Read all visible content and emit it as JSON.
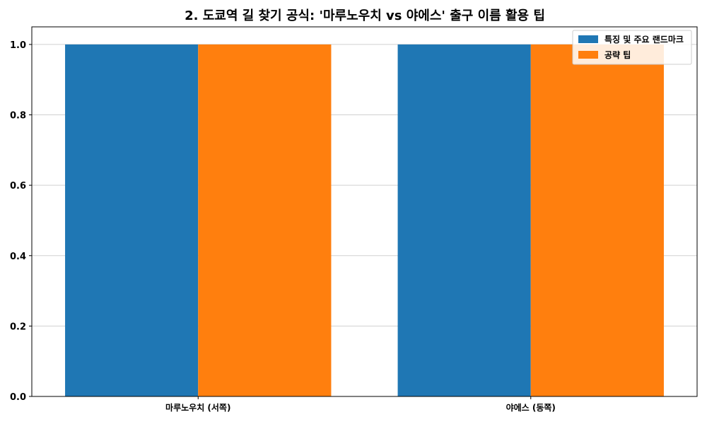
{
  "chart_data": {
    "type": "bar",
    "title": "2. 도쿄역 길 찾기 공식: '마루노우치 vs 야에스' 출구 이름 활용 팁",
    "xlabel": "",
    "ylabel": "",
    "categories": [
      "마루노우치 (서쪽)",
      "야에스 (동쪽)"
    ],
    "series": [
      {
        "name": "특징 및 주요 랜드마크",
        "color": "#1f77b4",
        "values": [
          1.0,
          1.0
        ]
      },
      {
        "name": "공략 팁",
        "color": "#ff7f0e",
        "values": [
          1.0,
          1.0
        ]
      }
    ],
    "ylim": [
      0,
      1.05
    ],
    "yticks": [
      0.0,
      0.2,
      0.4,
      0.6,
      0.8,
      1.0
    ],
    "ytick_labels": [
      "0.0",
      "0.2",
      "0.4",
      "0.6",
      "0.8",
      "1.0"
    ],
    "grid": true,
    "grid_axis": "y",
    "legend_position": "top-right"
  }
}
